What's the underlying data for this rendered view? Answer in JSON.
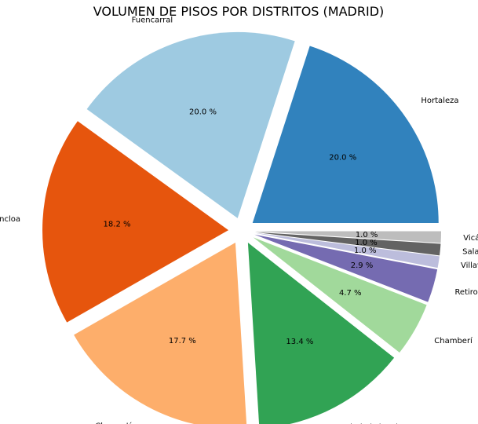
{
  "chart_data": {
    "type": "pie",
    "title": "VOLUMEN DE PISOS POR DISTRITOS (MADRID)",
    "slices": [
      {
        "label": "Hortaleza",
        "value": 20.0,
        "pct_text": "20.0 %",
        "color": "#3182bd"
      },
      {
        "label": "Fuencarral",
        "value": 20.0,
        "pct_text": "20.0 %",
        "color": "#9ecae1"
      },
      {
        "label": "Moncloa",
        "value": 18.2,
        "pct_text": "18.2 %",
        "color": "#e6550d"
      },
      {
        "label": "Chamartín",
        "value": 17.7,
        "pct_text": "17.7 %",
        "color": "#fdae6b"
      },
      {
        "label": "Ciudad Lineal",
        "value": 13.4,
        "pct_text": "13.4 %",
        "color": "#31a354"
      },
      {
        "label": "Chamberí",
        "value": 4.7,
        "pct_text": "4.7 %",
        "color": "#a1d99b"
      },
      {
        "label": "Retiro",
        "value": 2.9,
        "pct_text": "2.9 %",
        "color": "#756bb1"
      },
      {
        "label": "Villaverde",
        "value": 1.0,
        "pct_text": "1.0 %",
        "color": "#bcbddc"
      },
      {
        "label": "Salamanca",
        "value": 1.0,
        "pct_text": "1.0 %",
        "color": "#636363"
      },
      {
        "label": "Vicálvaro",
        "value": 1.0,
        "pct_text": "1.0 %",
        "color": "#bdbdbd"
      }
    ],
    "start_angle_deg": 0,
    "direction": "counterclockwise",
    "exploded": true,
    "legend": "none"
  }
}
